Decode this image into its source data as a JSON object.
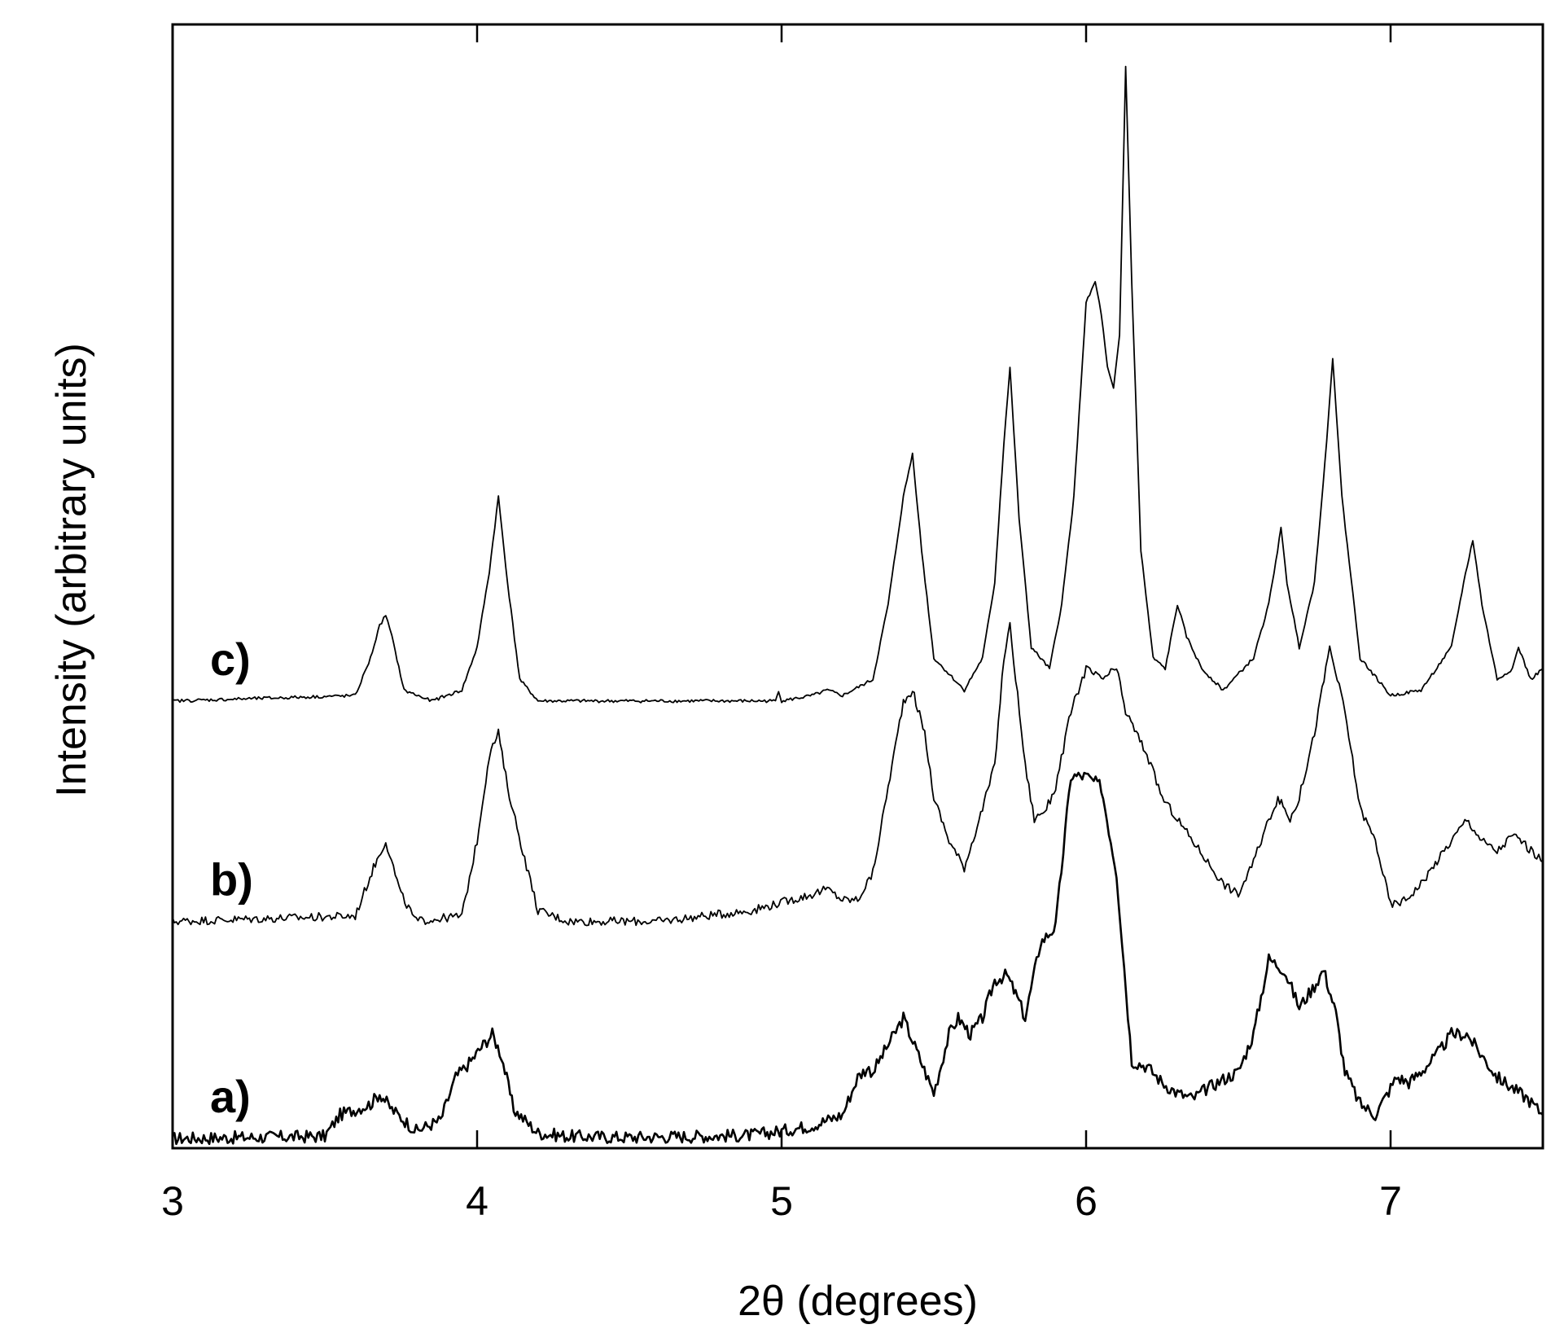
{
  "chart_data": {
    "type": "line",
    "xlabel": "2θ (degrees)",
    "ylabel": "Intensity (arbitrary units)",
    "xlim": [
      3,
      7.5
    ],
    "ylim": [
      0,
      1
    ],
    "x_ticks": [
      3,
      4,
      5,
      6,
      7
    ],
    "x_tick_labels": [
      "3",
      "4",
      "5",
      "6",
      "7"
    ],
    "y_ticks_shown": false,
    "grid": false,
    "legend": "none; series labeled inline at left",
    "colors": {
      "line": "#000000",
      "background": "#ffffff"
    },
    "series": [
      {
        "name": "a)",
        "x": [
          3.0,
          3.5,
          3.55,
          3.6,
          3.65,
          3.68,
          3.72,
          3.8,
          3.88,
          3.93,
          3.98,
          4.02,
          4.05,
          4.08,
          4.12,
          4.2,
          4.3,
          4.5,
          4.9,
          5.0,
          5.1,
          5.2,
          5.25,
          5.28,
          5.3,
          5.35,
          5.4,
          5.45,
          5.5,
          5.55,
          5.58,
          5.62,
          5.66,
          5.7,
          5.74,
          5.78,
          5.8,
          5.85,
          5.9,
          5.95,
          6.0,
          6.05,
          6.1,
          6.15,
          6.2,
          6.25,
          6.3,
          6.35,
          6.4,
          6.45,
          6.5,
          6.55,
          6.6,
          6.65,
          6.7,
          6.75,
          6.78,
          6.82,
          6.85,
          6.9,
          6.95,
          7.0,
          7.02,
          7.06,
          7.1,
          7.15,
          7.2,
          7.25,
          7.3,
          7.35,
          7.4,
          7.45,
          7.5
        ],
        "y": [
          0.003,
          0.005,
          0.025,
          0.03,
          0.035,
          0.045,
          0.03,
          0.01,
          0.02,
          0.06,
          0.075,
          0.09,
          0.1,
          0.08,
          0.03,
          0.008,
          0.005,
          0.004,
          0.006,
          0.01,
          0.015,
          0.025,
          0.06,
          0.068,
          0.065,
          0.09,
          0.115,
          0.08,
          0.045,
          0.1,
          0.115,
          0.1,
          0.115,
          0.15,
          0.155,
          0.13,
          0.115,
          0.185,
          0.2,
          0.34,
          0.34,
          0.33,
          0.25,
          0.075,
          0.07,
          0.055,
          0.045,
          0.04,
          0.05,
          0.058,
          0.065,
          0.1,
          0.17,
          0.16,
          0.125,
          0.145,
          0.16,
          0.12,
          0.065,
          0.035,
          0.025,
          0.05,
          0.06,
          0.055,
          0.065,
          0.08,
          0.1,
          0.1,
          0.08,
          0.06,
          0.05,
          0.04,
          0.025
        ]
      },
      {
        "name": "b)",
        "x": [
          3.0,
          3.6,
          3.66,
          3.7,
          3.75,
          3.8,
          3.95,
          4.0,
          4.04,
          4.07,
          4.1,
          4.15,
          4.2,
          4.3,
          4.6,
          4.9,
          5.1,
          5.15,
          5.2,
          5.25,
          5.3,
          5.35,
          5.4,
          5.43,
          5.47,
          5.5,
          5.55,
          5.6,
          5.66,
          5.7,
          5.73,
          5.75,
          5.8,
          5.83,
          5.87,
          5.9,
          5.95,
          6.0,
          6.05,
          6.1,
          6.13,
          6.2,
          6.25,
          6.3,
          6.35,
          6.4,
          6.45,
          6.5,
          6.55,
          6.6,
          6.63,
          6.67,
          6.7,
          6.75,
          6.8,
          6.85,
          6.9,
          6.95,
          7.0,
          7.05,
          7.1,
          7.2,
          7.25,
          7.3,
          7.35,
          7.4,
          7.43,
          7.48,
          7.5
        ],
        "y": [
          0.205,
          0.21,
          0.255,
          0.28,
          0.23,
          0.205,
          0.21,
          0.28,
          0.36,
          0.38,
          0.33,
          0.27,
          0.215,
          0.205,
          0.205,
          0.215,
          0.23,
          0.235,
          0.225,
          0.225,
          0.25,
          0.33,
          0.41,
          0.42,
          0.38,
          0.32,
          0.28,
          0.255,
          0.31,
          0.35,
          0.45,
          0.48,
          0.35,
          0.3,
          0.31,
          0.33,
          0.4,
          0.44,
          0.43,
          0.44,
          0.4,
          0.36,
          0.32,
          0.3,
          0.28,
          0.26,
          0.24,
          0.23,
          0.26,
          0.3,
          0.32,
          0.3,
          0.32,
          0.38,
          0.46,
          0.4,
          0.31,
          0.28,
          0.22,
          0.225,
          0.24,
          0.28,
          0.3,
          0.28,
          0.27,
          0.285,
          0.28,
          0.265,
          0.26
        ]
      },
      {
        "name": "c)",
        "x": [
          3.0,
          3.6,
          3.65,
          3.68,
          3.7,
          3.72,
          3.76,
          3.85,
          3.95,
          4.0,
          4.04,
          4.07,
          4.1,
          4.14,
          4.2,
          4.4,
          4.8,
          4.98,
          4.99,
          5.0,
          5.1,
          5.15,
          5.2,
          5.3,
          5.35,
          5.4,
          5.43,
          5.46,
          5.5,
          5.6,
          5.66,
          5.7,
          5.73,
          5.75,
          5.78,
          5.82,
          5.88,
          5.92,
          5.96,
          6.0,
          6.03,
          6.05,
          6.07,
          6.09,
          6.11,
          6.13,
          6.15,
          6.18,
          6.22,
          6.26,
          6.3,
          6.33,
          6.38,
          6.45,
          6.55,
          6.6,
          6.64,
          6.66,
          6.7,
          6.75,
          6.79,
          6.81,
          6.84,
          6.9,
          7.0,
          7.1,
          7.2,
          7.24,
          7.27,
          7.3,
          7.35,
          7.4,
          7.42,
          7.46,
          7.5
        ],
        "y": [
          0.41,
          0.415,
          0.45,
          0.48,
          0.49,
          0.47,
          0.42,
          0.41,
          0.42,
          0.46,
          0.53,
          0.6,
          0.52,
          0.43,
          0.41,
          0.41,
          0.41,
          0.41,
          0.42,
          0.41,
          0.415,
          0.42,
          0.415,
          0.43,
          0.5,
          0.6,
          0.64,
          0.55,
          0.45,
          0.42,
          0.45,
          0.52,
          0.65,
          0.72,
          0.58,
          0.46,
          0.44,
          0.5,
          0.6,
          0.78,
          0.8,
          0.77,
          0.72,
          0.7,
          0.75,
          1.0,
          0.8,
          0.55,
          0.45,
          0.44,
          0.5,
          0.47,
          0.44,
          0.42,
          0.45,
          0.5,
          0.57,
          0.52,
          0.46,
          0.52,
          0.65,
          0.73,
          0.6,
          0.45,
          0.415,
          0.42,
          0.46,
          0.52,
          0.56,
          0.5,
          0.43,
          0.44,
          0.46,
          0.43,
          0.44
        ]
      }
    ]
  }
}
